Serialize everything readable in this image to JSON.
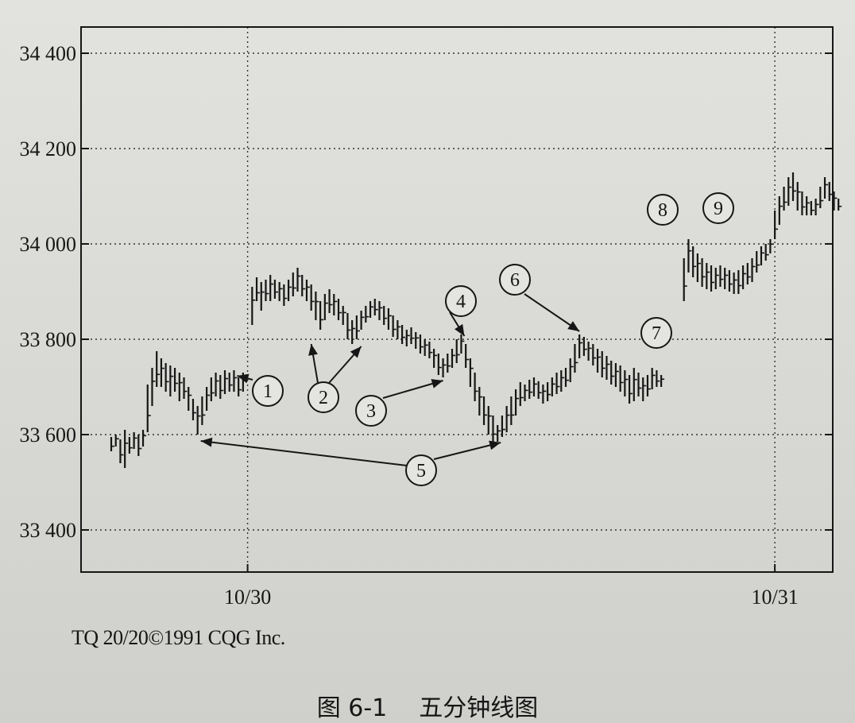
{
  "chart_data": {
    "type": "bar",
    "subtype": "ohlc",
    "title": "",
    "xlabel": "",
    "ylabel": "",
    "ylim": [
      33300,
      34500
    ],
    "y_ticks": [
      33400,
      33600,
      33800,
      34000,
      34200,
      34400
    ],
    "y_tick_labels": [
      "33 400",
      "33 600",
      "33 800",
      "34 000",
      "34 200",
      "34 400"
    ],
    "x_ticks": [
      {
        "label": "10/30",
        "bar_index": 30
      },
      {
        "label": "10/31",
        "bar_index": 146
      }
    ],
    "grid": "dotted",
    "bars": [
      {
        "i": 0,
        "h": 33595,
        "l": 33565
      },
      {
        "i": 1,
        "h": 33600,
        "l": 33575
      },
      {
        "i": 2,
        "h": 33590,
        "l": 33540
      },
      {
        "i": 3,
        "h": 33610,
        "l": 33530
      },
      {
        "i": 4,
        "h": 33595,
        "l": 33560
      },
      {
        "i": 5,
        "h": 33605,
        "l": 33570
      },
      {
        "i": 6,
        "h": 33600,
        "l": 33555
      },
      {
        "i": 7,
        "h": 33610,
        "l": 33575
      },
      {
        "i": 8,
        "h": 33705,
        "l": 33605
      },
      {
        "i": 9,
        "h": 33740,
        "l": 33660
      },
      {
        "i": 10,
        "h": 33775,
        "l": 33700
      },
      {
        "i": 11,
        "h": 33760,
        "l": 33700
      },
      {
        "i": 12,
        "h": 33750,
        "l": 33690
      },
      {
        "i": 13,
        "h": 33745,
        "l": 33680
      },
      {
        "i": 14,
        "h": 33740,
        "l": 33690
      },
      {
        "i": 15,
        "h": 33730,
        "l": 33670
      },
      {
        "i": 16,
        "h": 33720,
        "l": 33675
      },
      {
        "i": 17,
        "h": 33700,
        "l": 33650
      },
      {
        "i": 18,
        "h": 33675,
        "l": 33630
      },
      {
        "i": 19,
        "h": 33660,
        "l": 33600
      },
      {
        "i": 20,
        "h": 33680,
        "l": 33620
      },
      {
        "i": 21,
        "h": 33700,
        "l": 33650
      },
      {
        "i": 22,
        "h": 33720,
        "l": 33670
      },
      {
        "i": 23,
        "h": 33730,
        "l": 33680
      },
      {
        "i": 24,
        "h": 33725,
        "l": 33675
      },
      {
        "i": 25,
        "h": 33735,
        "l": 33685
      },
      {
        "i": 26,
        "h": 33730,
        "l": 33690
      },
      {
        "i": 27,
        "h": 33735,
        "l": 33690
      },
      {
        "i": 28,
        "h": 33720,
        "l": 33680
      },
      {
        "i": 29,
        "h": 33730,
        "l": 33690
      },
      {
        "i": 31,
        "h": 33910,
        "l": 33830
      },
      {
        "i": 32,
        "h": 33930,
        "l": 33880
      },
      {
        "i": 33,
        "h": 33920,
        "l": 33860
      },
      {
        "i": 34,
        "h": 33925,
        "l": 33880
      },
      {
        "i": 35,
        "h": 33935,
        "l": 33880
      },
      {
        "i": 36,
        "h": 33925,
        "l": 33885
      },
      {
        "i": 37,
        "h": 33920,
        "l": 33880
      },
      {
        "i": 38,
        "h": 33915,
        "l": 33870
      },
      {
        "i": 39,
        "h": 33925,
        "l": 33880
      },
      {
        "i": 40,
        "h": 33940,
        "l": 33890
      },
      {
        "i": 41,
        "h": 33950,
        "l": 33900
      },
      {
        "i": 42,
        "h": 33935,
        "l": 33890
      },
      {
        "i": 43,
        "h": 33925,
        "l": 33880
      },
      {
        "i": 44,
        "h": 33915,
        "l": 33860
      },
      {
        "i": 45,
        "h": 33900,
        "l": 33840
      },
      {
        "i": 46,
        "h": 33880,
        "l": 33820
      },
      {
        "i": 47,
        "h": 33895,
        "l": 33840
      },
      {
        "i": 48,
        "h": 33905,
        "l": 33855
      },
      {
        "i": 49,
        "h": 33895,
        "l": 33850
      },
      {
        "i": 50,
        "h": 33885,
        "l": 33840
      },
      {
        "i": 51,
        "h": 33870,
        "l": 33830
      },
      {
        "i": 52,
        "h": 33855,
        "l": 33800
      },
      {
        "i": 53,
        "h": 33840,
        "l": 33790
      },
      {
        "i": 54,
        "h": 33850,
        "l": 33800
      },
      {
        "i": 55,
        "h": 33860,
        "l": 33820
      },
      {
        "i": 56,
        "h": 33870,
        "l": 33835
      },
      {
        "i": 57,
        "h": 33880,
        "l": 33845
      },
      {
        "i": 58,
        "h": 33885,
        "l": 33850
      },
      {
        "i": 59,
        "h": 33880,
        "l": 33840
      },
      {
        "i": 60,
        "h": 33870,
        "l": 33830
      },
      {
        "i": 61,
        "h": 33865,
        "l": 33820
      },
      {
        "i": 62,
        "h": 33850,
        "l": 33805
      },
      {
        "i": 63,
        "h": 33840,
        "l": 33800
      },
      {
        "i": 64,
        "h": 33830,
        "l": 33790
      },
      {
        "i": 65,
        "h": 33820,
        "l": 33785
      },
      {
        "i": 66,
        "h": 33825,
        "l": 33790
      },
      {
        "i": 67,
        "h": 33815,
        "l": 33780
      },
      {
        "i": 68,
        "h": 33810,
        "l": 33770
      },
      {
        "i": 69,
        "h": 33800,
        "l": 33765
      },
      {
        "i": 70,
        "h": 33795,
        "l": 33760
      },
      {
        "i": 71,
        "h": 33780,
        "l": 33740
      },
      {
        "i": 72,
        "h": 33770,
        "l": 33725
      },
      {
        "i": 73,
        "h": 33760,
        "l": 33720
      },
      {
        "i": 74,
        "h": 33770,
        "l": 33730
      },
      {
        "i": 75,
        "h": 33780,
        "l": 33740
      },
      {
        "i": 76,
        "h": 33800,
        "l": 33750
      },
      {
        "i": 77,
        "h": 33810,
        "l": 33770
      },
      {
        "i": 78,
        "h": 33790,
        "l": 33740
      },
      {
        "i": 79,
        "h": 33760,
        "l": 33700
      },
      {
        "i": 80,
        "h": 33730,
        "l": 33670
      },
      {
        "i": 81,
        "h": 33700,
        "l": 33640
      },
      {
        "i": 82,
        "h": 33680,
        "l": 33620
      },
      {
        "i": 83,
        "h": 33660,
        "l": 33600
      },
      {
        "i": 84,
        "h": 33640,
        "l": 33580
      },
      {
        "i": 85,
        "h": 33620,
        "l": 33585
      },
      {
        "i": 86,
        "h": 33640,
        "l": 33595
      },
      {
        "i": 87,
        "h": 33660,
        "l": 33605
      },
      {
        "i": 88,
        "h": 33680,
        "l": 33620
      },
      {
        "i": 89,
        "h": 33695,
        "l": 33640
      },
      {
        "i": 90,
        "h": 33710,
        "l": 33660
      },
      {
        "i": 91,
        "h": 33705,
        "l": 33670
      },
      {
        "i": 92,
        "h": 33715,
        "l": 33675
      },
      {
        "i": 93,
        "h": 33720,
        "l": 33680
      },
      {
        "i": 94,
        "h": 33712,
        "l": 33675
      },
      {
        "i": 95,
        "h": 33705,
        "l": 33665
      },
      {
        "i": 96,
        "h": 33710,
        "l": 33670
      },
      {
        "i": 97,
        "h": 33720,
        "l": 33680
      },
      {
        "i": 98,
        "h": 33730,
        "l": 33685
      },
      {
        "i": 99,
        "h": 33735,
        "l": 33690
      },
      {
        "i": 100,
        "h": 33740,
        "l": 33700
      },
      {
        "i": 101,
        "h": 33760,
        "l": 33710
      },
      {
        "i": 102,
        "h": 33790,
        "l": 33730
      },
      {
        "i": 103,
        "h": 33810,
        "l": 33760
      },
      {
        "i": 104,
        "h": 33805,
        "l": 33765
      },
      {
        "i": 105,
        "h": 33795,
        "l": 33755
      },
      {
        "i": 106,
        "h": 33790,
        "l": 33745
      },
      {
        "i": 107,
        "h": 33780,
        "l": 33730
      },
      {
        "i": 108,
        "h": 33775,
        "l": 33720
      },
      {
        "i": 109,
        "h": 33765,
        "l": 33715
      },
      {
        "i": 110,
        "h": 33755,
        "l": 33705
      },
      {
        "i": 111,
        "h": 33750,
        "l": 33700
      },
      {
        "i": 112,
        "h": 33745,
        "l": 33690
      },
      {
        "i": 113,
        "h": 33735,
        "l": 33680
      },
      {
        "i": 114,
        "h": 33725,
        "l": 33665
      },
      {
        "i": 115,
        "h": 33740,
        "l": 33670
      },
      {
        "i": 116,
        "h": 33730,
        "l": 33680
      },
      {
        "i": 117,
        "h": 33720,
        "l": 33670
      },
      {
        "i": 118,
        "h": 33725,
        "l": 33680
      },
      {
        "i": 119,
        "h": 33740,
        "l": 33695
      },
      {
        "i": 120,
        "h": 33735,
        "l": 33700
      },
      {
        "i": 121,
        "h": 33725,
        "l": 33700
      },
      {
        "i": 126,
        "h": 33970,
        "l": 33880
      },
      {
        "i": 127,
        "h": 34010,
        "l": 33940
      },
      {
        "i": 128,
        "h": 33995,
        "l": 33930
      },
      {
        "i": 129,
        "h": 33980,
        "l": 33920
      },
      {
        "i": 130,
        "h": 33970,
        "l": 33910
      },
      {
        "i": 131,
        "h": 33960,
        "l": 33905
      },
      {
        "i": 132,
        "h": 33955,
        "l": 33900
      },
      {
        "i": 133,
        "h": 33950,
        "l": 33905
      },
      {
        "i": 134,
        "h": 33955,
        "l": 33910
      },
      {
        "i": 135,
        "h": 33950,
        "l": 33905
      },
      {
        "i": 136,
        "h": 33945,
        "l": 33900
      },
      {
        "i": 137,
        "h": 33940,
        "l": 33895
      },
      {
        "i": 138,
        "h": 33945,
        "l": 33895
      },
      {
        "i": 139,
        "h": 33955,
        "l": 33905
      },
      {
        "i": 140,
        "h": 33960,
        "l": 33915
      },
      {
        "i": 141,
        "h": 33970,
        "l": 33920
      },
      {
        "i": 142,
        "h": 33985,
        "l": 33940
      },
      {
        "i": 143,
        "h": 33995,
        "l": 33955
      },
      {
        "i": 144,
        "h": 34000,
        "l": 33965
      },
      {
        "i": 145,
        "h": 34010,
        "l": 33980
      },
      {
        "i": 146,
        "h": 34070,
        "l": 34010
      },
      {
        "i": 147,
        "h": 34100,
        "l": 34040
      },
      {
        "i": 148,
        "h": 34120,
        "l": 34070
      },
      {
        "i": 149,
        "h": 34140,
        "l": 34080
      },
      {
        "i": 150,
        "h": 34150,
        "l": 34090
      },
      {
        "i": 151,
        "h": 34130,
        "l": 34070
      },
      {
        "i": 152,
        "h": 34110,
        "l": 34060
      },
      {
        "i": 153,
        "h": 34100,
        "l": 34060
      },
      {
        "i": 154,
        "h": 34090,
        "l": 34060
      },
      {
        "i": 155,
        "h": 34095,
        "l": 34060
      },
      {
        "i": 156,
        "h": 34120,
        "l": 34075
      },
      {
        "i": 157,
        "h": 34140,
        "l": 34095
      },
      {
        "i": 158,
        "h": 34130,
        "l": 34090
      },
      {
        "i": 159,
        "h": 34110,
        "l": 34070
      },
      {
        "i": 160,
        "h": 34095,
        "l": 34070
      }
    ],
    "annotations": [
      {
        "label": "1",
        "target_bar": 27,
        "target_price": 33730
      },
      {
        "label": "2",
        "targets": [
          {
            "bar": 44,
            "price": 33800
          },
          {
            "bar": 55,
            "price": 33795
          }
        ]
      },
      {
        "label": "3",
        "target_bar": 73,
        "target_price": 33720
      },
      {
        "label": "4",
        "target_bar": 77,
        "target_price": 33810
      },
      {
        "label": "5",
        "targets": [
          {
            "bar": 19,
            "price": 33590
          },
          {
            "bar": 85,
            "price": 33590
          }
        ]
      },
      {
        "label": "6",
        "target_bar": 103,
        "target_price": 33810
      },
      {
        "label": "7",
        "target_bar": null,
        "target_price": null
      },
      {
        "label": "8",
        "target_bar": null,
        "target_price": null
      },
      {
        "label": "9",
        "target_bar": null,
        "target_price": null
      }
    ]
  },
  "credit": "TQ 20/20©1991 CQG Inc.",
  "caption": {
    "number": "图 6-1",
    "title": "五分钟线图"
  },
  "colors": {
    "ink": "#161616",
    "grid": "#333333",
    "background": "#dcdcd8"
  }
}
